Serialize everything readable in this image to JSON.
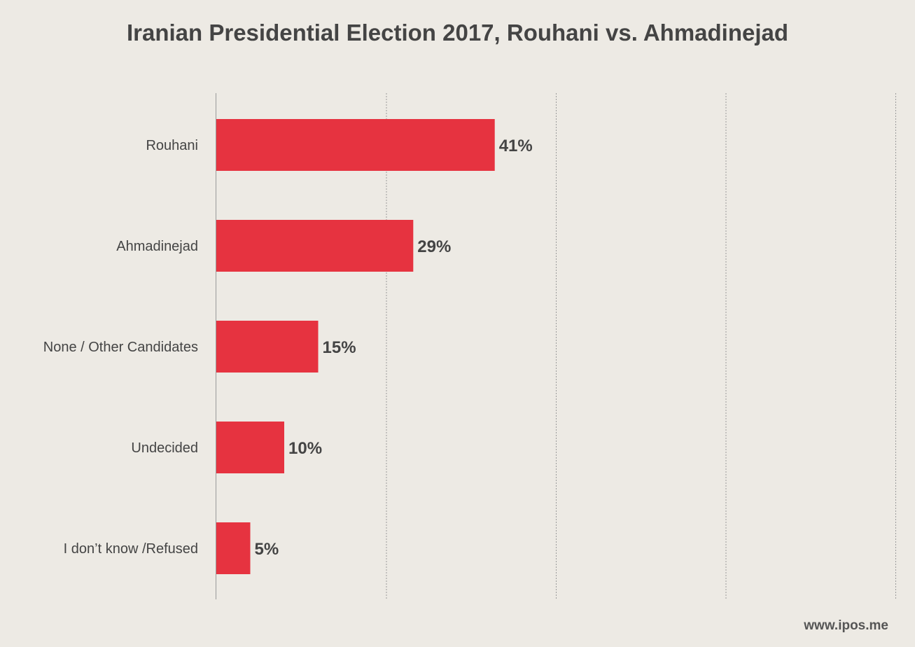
{
  "chart_data": {
    "type": "bar",
    "orientation": "horizontal",
    "title": "Iranian Presidential Election 2017, Rouhani vs. Ahmadinejad",
    "categories": [
      "Rouhani",
      "Ahmadinejad",
      "None / Other Candidates",
      "Undecided",
      "I don’t know /Refused"
    ],
    "values": [
      41,
      29,
      15,
      10,
      5
    ],
    "value_labels": [
      "41%",
      "29%",
      "15%",
      "10%",
      "5%"
    ],
    "xlim": [
      0,
      100
    ],
    "xlabel": "",
    "ylabel": "",
    "grid": true,
    "bar_color": "#e63340"
  },
  "footer": {
    "source": "www.ipos.me"
  }
}
